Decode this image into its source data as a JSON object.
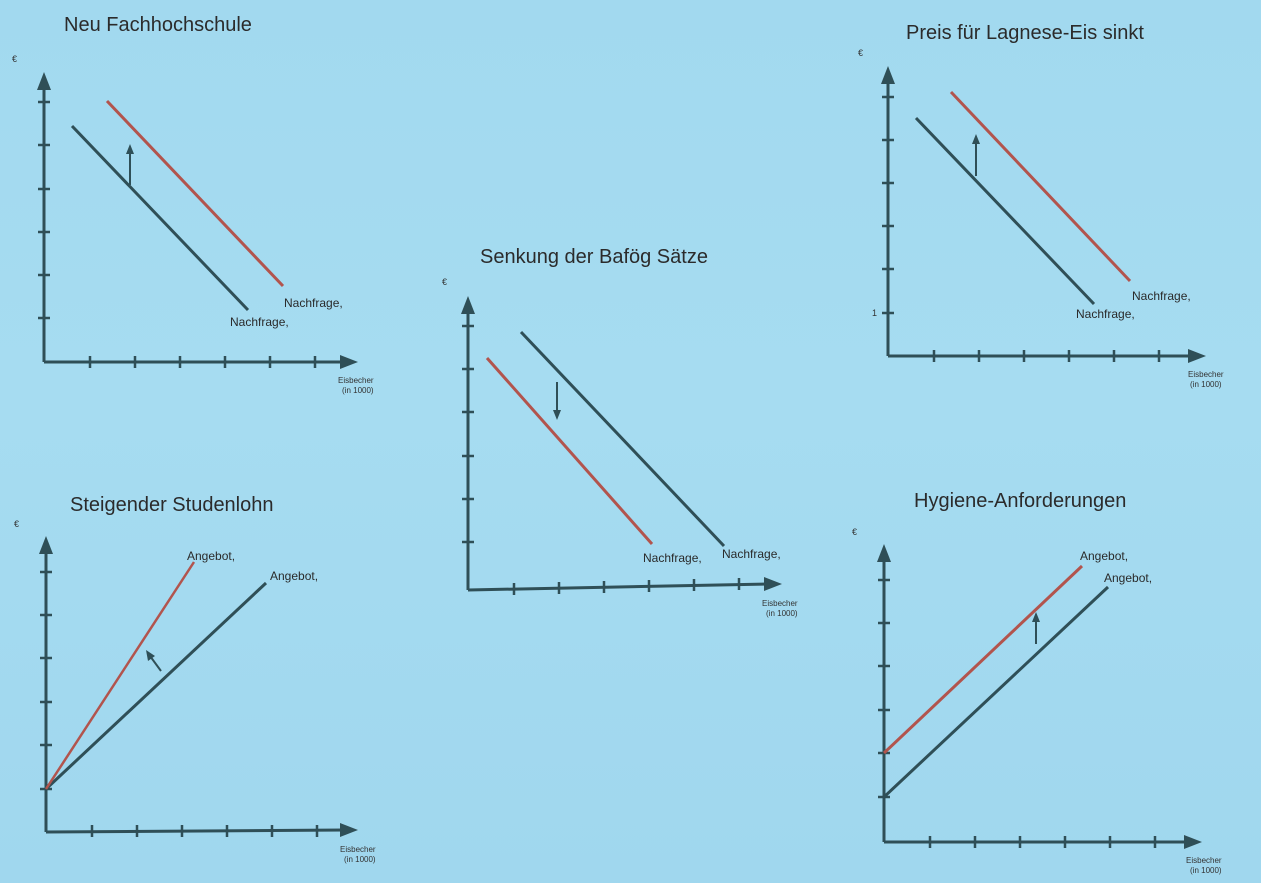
{
  "panels": [
    {
      "id": "neu-fachhochschule",
      "title": "Neu Fachhochschule",
      "ylabel": "€",
      "xlabel_line1": "Eisbecher",
      "xlabel_line2": "(in 1000)",
      "ytick_label": "",
      "curves": [
        {
          "label": "Nachfrage,",
          "color": "#2f4f57"
        },
        {
          "label": "Nachfrage,",
          "color": "#b2544d"
        }
      ],
      "shift": "up"
    },
    {
      "id": "preis-lagnese",
      "title": "Preis für Lagnese-Eis sinkt",
      "ylabel": "€",
      "xlabel_line1": "Eisbecher",
      "xlabel_line2": "(in 1000)",
      "ytick_label": "1",
      "curves": [
        {
          "label": "Nachfrage,",
          "color": "#2f4f57"
        },
        {
          "label": "Nachfrage,",
          "color": "#b2544d"
        }
      ],
      "shift": "up"
    },
    {
      "id": "senkung-bafoeg",
      "title": "Senkung der Bafög Sätze",
      "ylabel": "€",
      "xlabel_line1": "Eisbecher",
      "xlabel_line2": "(in 1000)",
      "ytick_label": "",
      "curves": [
        {
          "label": "Nachfrage,",
          "color": "#2f4f57"
        },
        {
          "label": "Nachfrage,",
          "color": "#b2544d"
        }
      ],
      "shift": "down"
    },
    {
      "id": "steigender-studenlohn",
      "title": "Steigender Studenlohn",
      "ylabel": "€",
      "xlabel_line1": "Eisbecher",
      "xlabel_line2": "(in 1000)",
      "ytick_label": "",
      "curves": [
        {
          "label": "Angebot,",
          "color": "#2f4f57"
        },
        {
          "label": "Angebot,",
          "color": "#b2544d"
        }
      ],
      "shift": "rotate-up"
    },
    {
      "id": "hygiene-anforderungen",
      "title": "Hygiene-Anforderungen",
      "ylabel": "€",
      "xlabel_line1": "Eisbecher",
      "xlabel_line2": "(in 1000)",
      "ytick_label": "",
      "curves": [
        {
          "label": "Angebot,",
          "color": "#2f4f57"
        },
        {
          "label": "Angebot,",
          "color": "#b2544d"
        }
      ],
      "shift": "up"
    }
  ]
}
